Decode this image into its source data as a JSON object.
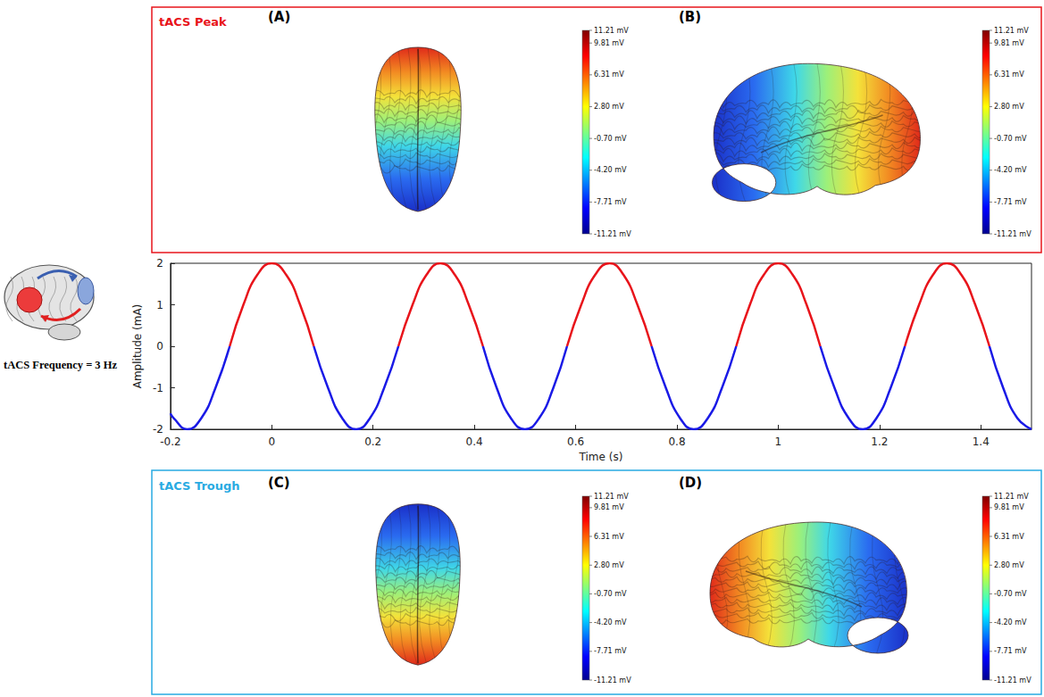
{
  "chart_data": {
    "type": "line",
    "x": [
      -0.2,
      -0.194,
      -0.167,
      -0.139,
      -0.111,
      -0.083,
      -0.056,
      -0.028,
      0,
      0.028,
      0.056,
      0.083,
      0.111,
      0.139,
      0.167,
      0.194,
      0.222,
      0.25,
      0.278,
      0.306,
      0.333,
      0.361,
      0.389,
      0.417,
      0.444,
      0.472,
      0.5,
      0.528,
      0.556,
      0.583,
      0.611,
      0.639,
      0.667,
      0.694,
      0.722,
      0.75,
      0.778,
      0.806,
      0.833,
      0.861,
      0.889,
      0.917,
      0.944,
      0.972,
      1,
      1.028,
      1.056,
      1.083,
      1.111,
      1.139,
      1.167,
      1.194,
      1.222,
      1.25,
      1.278,
      1.306,
      1.333,
      1.361,
      1.389,
      1.417,
      1.444,
      1.472,
      1.5
    ],
    "series": [
      {
        "color": "#e8141b",
        "values": [
          null,
          null,
          null,
          null,
          null,
          0,
          1,
          1.73,
          2,
          1.73,
          1,
          0,
          null,
          null,
          null,
          null,
          null,
          0,
          1,
          1.73,
          2,
          1.73,
          1,
          0,
          null,
          null,
          null,
          null,
          null,
          0,
          1,
          1.73,
          2,
          1.73,
          1,
          0,
          null,
          null,
          null,
          null,
          null,
          0,
          1,
          1.73,
          2,
          1.73,
          1,
          0,
          null,
          null,
          null,
          null,
          null,
          0,
          1,
          1.73,
          2,
          1.73,
          1,
          0,
          null,
          null,
          null
        ]
      },
      {
        "color": "#1a1ae6",
        "values": [
          -1.62,
          -1.73,
          -2,
          -1.73,
          -1,
          0,
          null,
          null,
          null,
          null,
          null,
          0,
          -1,
          -1.73,
          -2,
          -1.73,
          -1,
          0,
          null,
          null,
          null,
          null,
          null,
          0,
          -1,
          -1.73,
          -2,
          -1.73,
          -1,
          0,
          null,
          null,
          null,
          null,
          null,
          0,
          -1,
          -1.73,
          -2,
          -1.73,
          -1,
          0,
          null,
          null,
          null,
          null,
          null,
          0,
          -1,
          -1.73,
          -2,
          -1.73,
          -1,
          0,
          null,
          null,
          null,
          null,
          null,
          0,
          -1,
          -1.73,
          -2
        ]
      }
    ],
    "x_label": "Time (s)",
    "y_label": "Amplitude (mA)",
    "xlim": [
      -0.2,
      1.5
    ],
    "ylim": [
      -2,
      2
    ],
    "xticks": [
      -0.2,
      0,
      0.2,
      0.4,
      0.6,
      0.8,
      1,
      1.2,
      1.4
    ],
    "yticks": [
      -2,
      -1,
      0,
      1,
      2
    ],
    "grid": false,
    "line_style": "solid"
  },
  "caption": "tACS Frequency = 3 Hz",
  "panels": [
    {
      "title": "tACS Peak",
      "color": "#e8141b",
      "maps": [
        "(A)",
        "(B)"
      ]
    },
    {
      "title": "tACS Trough",
      "color": "#29abe2",
      "maps": [
        "(C)",
        "(D)"
      ]
    }
  ],
  "colorbar": {
    "range": [
      -11.21,
      11.21
    ],
    "ticks": [
      {
        "value": 11.21,
        "label": "11.21 mV"
      },
      {
        "value": 9.81,
        "label": "9.81 mV"
      },
      {
        "value": 6.31,
        "label": "6.31 mV"
      },
      {
        "value": 2.8,
        "label": "2.80 mV"
      },
      {
        "value": -0.7,
        "label": "-0.70 mV"
      },
      {
        "value": -4.2,
        "label": "-4.20 mV"
      },
      {
        "value": -7.71,
        "label": "-7.71 mV"
      },
      {
        "value": -11.21,
        "label": "-11.21 mV"
      }
    ]
  }
}
